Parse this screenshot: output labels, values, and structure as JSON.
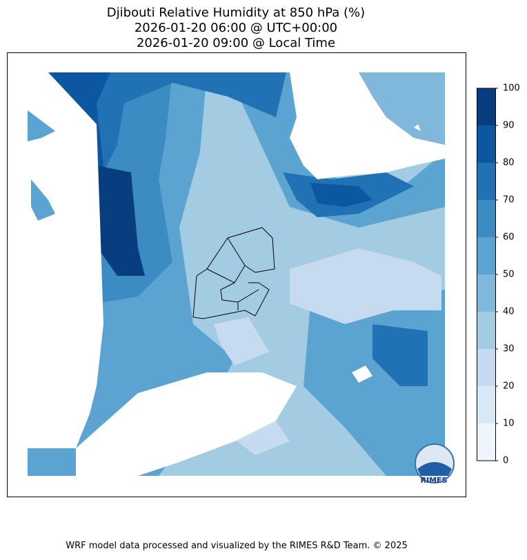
{
  "title": [
    "Djibouti Relative Humidity at 850 hPa (%)",
    "2026-01-20 06:00 @ UTC+00:00",
    "2026-01-20 09:00 @ Local Time"
  ],
  "colorbar": {
    "lim": [
      0,
      100
    ],
    "ticks": [
      0,
      10,
      20,
      30,
      40,
      50,
      60,
      70,
      80,
      90,
      100
    ],
    "colors": [
      "#eef5fc",
      "#d9e8f5",
      "#c6dbef",
      "#a3cce3",
      "#7fb8da",
      "#5ba3d0",
      "#3c8bc3",
      "#2171b5",
      "#0d57a1",
      "#083d7f"
    ]
  },
  "logo": "RIMES",
  "footer": "WRF model data processed and visualized by the RIMES R&D Team. © 2025"
}
